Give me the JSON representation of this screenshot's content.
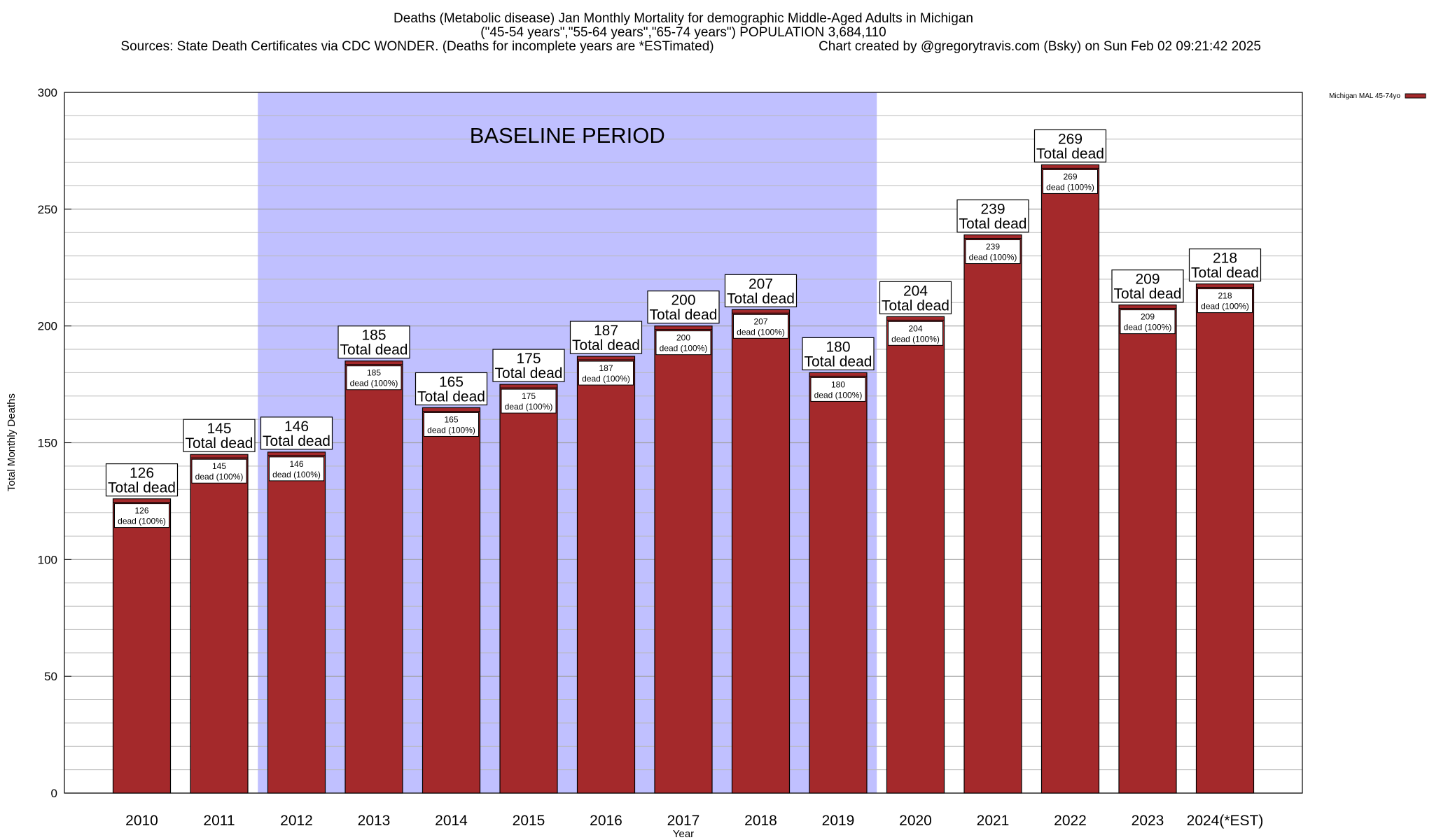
{
  "chart_data": {
    "type": "bar",
    "title_lines": [
      "Deaths (Metabolic disease) Jan Monthly Mortality for demographic Middle-Aged Adults in Michigan",
      "(\"45-54 years\",\"55-64 years\",\"65-74 years\") POPULATION 3,684,110",
      "Sources: State Death Certificates via CDC WONDER. (Deaths for incomplete years are *ESTimated)",
      "Chart created by @gregorytravis.com (Bsky) on Sun Feb 02 09:21:42 2025"
    ],
    "xlabel": "Year",
    "ylabel": "Total Monthly Deaths",
    "ylim": [
      0,
      300
    ],
    "yticks": [
      0,
      50,
      100,
      150,
      200,
      250,
      300
    ],
    "minor_grid_step": 10,
    "categories": [
      "2010",
      "2011",
      "2012",
      "2013",
      "2014",
      "2015",
      "2016",
      "2017",
      "2018",
      "2019",
      "2020",
      "2021",
      "2022",
      "2023",
      "2024(*EST)"
    ],
    "series": [
      {
        "name": "Michigan MAL 45-74yo",
        "values": [
          126,
          145,
          146,
          185,
          165,
          175,
          187,
          200,
          207,
          180,
          204,
          239,
          269,
          209,
          218
        ]
      }
    ],
    "bar_labels_top": [
      "126",
      "145",
      "146",
      "185",
      "165",
      "175",
      "187",
      "200",
      "207",
      "180",
      "204",
      "239",
      "269",
      "209",
      "218"
    ],
    "top_label_suffix": "Total dead",
    "bar_labels_inner": [
      "126",
      "145",
      "146",
      "185",
      "165",
      "175",
      "187",
      "200",
      "207",
      "180",
      "204",
      "239",
      "269",
      "209",
      "218"
    ],
    "inner_label_suffix": "dead (100%)",
    "baseline_period": {
      "label": "BASELINE PERIOD",
      "start_category": "2012",
      "end_category": "2019"
    },
    "legend": {
      "position": "top-right",
      "entries": [
        "Michigan MAL 45-74yo"
      ]
    },
    "colors": {
      "bar": "#a4292b",
      "baseline": "#c0c0ff",
      "grid": "#a0a0a0"
    }
  }
}
